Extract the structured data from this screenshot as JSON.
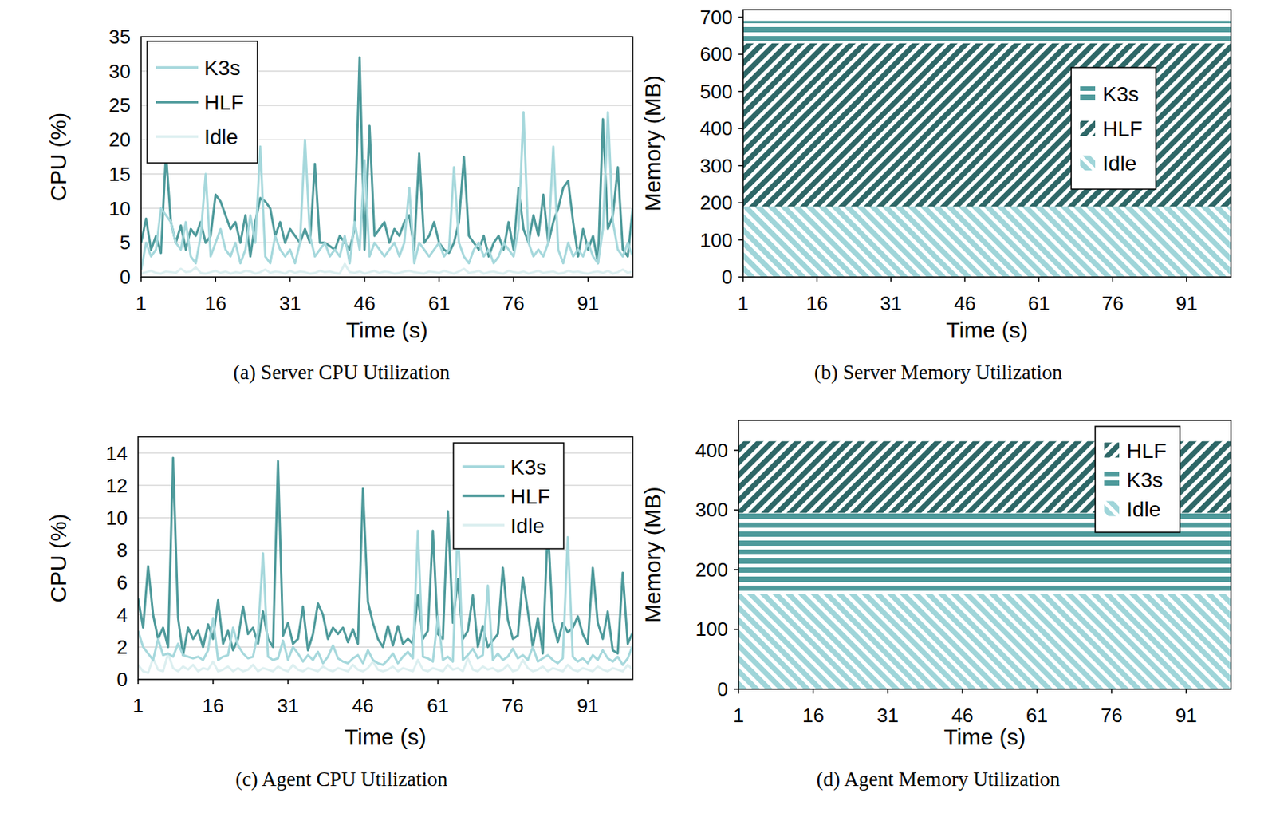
{
  "chart_data": [
    {
      "type": "line",
      "title": "(a) Server CPU Utilization",
      "x_label": "Time (s)",
      "y_label": "CPU (%)",
      "x": [
        1,
        2,
        3,
        4,
        5,
        6,
        7,
        8,
        9,
        10,
        11,
        12,
        13,
        14,
        15,
        16,
        17,
        18,
        19,
        20,
        21,
        22,
        23,
        24,
        25,
        26,
        27,
        28,
        29,
        30,
        31,
        32,
        33,
        34,
        35,
        36,
        37,
        38,
        39,
        40,
        41,
        42,
        43,
        44,
        45,
        46,
        47,
        48,
        49,
        50,
        51,
        52,
        53,
        54,
        55,
        56,
        57,
        58,
        59,
        60,
        61,
        62,
        63,
        64,
        65,
        66,
        67,
        68,
        69,
        70,
        71,
        72,
        73,
        74,
        75,
        76,
        77,
        78,
        79,
        80,
        81,
        82,
        83,
        84,
        85,
        86,
        87,
        88,
        89,
        90,
        91,
        92,
        93,
        94,
        95,
        96,
        97,
        98,
        99,
        100
      ],
      "xlim": [
        1,
        100
      ],
      "xticks": [
        1,
        16,
        31,
        46,
        61,
        76,
        91
      ],
      "ylim": [
        0,
        35
      ],
      "yticks": [
        0,
        5,
        10,
        15,
        20,
        25,
        30,
        35
      ],
      "grid": true,
      "legend": "upper left",
      "series": [
        {
          "name": "K3s",
          "color": "#a6d8dc",
          "values": [
            1,
            5,
            3,
            4,
            10,
            9,
            8,
            5,
            4,
            8,
            3,
            2,
            6,
            15,
            3,
            5,
            7,
            4,
            3,
            5,
            2,
            4,
            9,
            5,
            19,
            3,
            2,
            6,
            4,
            3,
            4,
            2,
            5,
            20,
            6,
            3,
            4,
            5,
            3,
            4,
            3,
            6,
            2,
            8,
            4,
            17,
            3,
            5,
            4,
            3,
            4,
            5,
            3,
            5,
            13,
            2,
            5,
            4,
            3,
            4,
            5,
            3,
            4,
            16,
            5,
            3,
            2,
            4,
            5,
            3,
            4,
            2,
            3,
            5,
            4,
            3,
            7,
            24,
            5,
            3,
            4,
            3,
            5,
            19,
            4,
            2,
            5,
            3,
            4,
            3,
            5,
            3,
            2,
            7,
            24,
            8,
            4,
            3,
            5,
            3
          ]
        },
        {
          "name": "HLF",
          "color": "#4e9a9b",
          "values": [
            5,
            8.5,
            4,
            6,
            3.5,
            18,
            8,
            5,
            7.5,
            4,
            7,
            6,
            8,
            5,
            6,
            12,
            11,
            9,
            7,
            8,
            5,
            9,
            3,
            8,
            11.5,
            11,
            10,
            6,
            8,
            5,
            7,
            6,
            5,
            7,
            5,
            16.5,
            5,
            5,
            4.5,
            4,
            6,
            5,
            4,
            7,
            32,
            4,
            22,
            6,
            7,
            8,
            5,
            7,
            6,
            8,
            9,
            4,
            18,
            5,
            6,
            8,
            5,
            4,
            3.5,
            5,
            8,
            17.5,
            6,
            5,
            4,
            6,
            3,
            5,
            6,
            4,
            8,
            4,
            13,
            7,
            5,
            9,
            6,
            12,
            5,
            8,
            10,
            13,
            14,
            8,
            3,
            7,
            4,
            6,
            2,
            23,
            7,
            9,
            16,
            4,
            3,
            10
          ]
        },
        {
          "name": "Idle",
          "color": "#dcefF0",
          "values": [
            0.5,
            0.7,
            0.9,
            0.6,
            0.5,
            0.8,
            0.7,
            0.6,
            1.2,
            0.7,
            0.8,
            1.4,
            0.6,
            0.5,
            0.7,
            0.9,
            0.6,
            0.8,
            0.5,
            0.7,
            0.6,
            0.9,
            0.8,
            0.5,
            0.7,
            1.1,
            0.6,
            0.8,
            0.7,
            0.5,
            0.9,
            0.6,
            0.8,
            0.7,
            0.5,
            0.6,
            0.9,
            0.7,
            0.8,
            0.6,
            0.5,
            1.9,
            0.7,
            0.6,
            0.8,
            0.5,
            0.7,
            0.9,
            0.6,
            0.8,
            0.7,
            0.5,
            0.6,
            0.8,
            0.9,
            0.7,
            0.6,
            0.5,
            0.8,
            0.7,
            0.6,
            0.9,
            0.7,
            0.5,
            0.8,
            1.2,
            0.6,
            0.7,
            0.9,
            0.5,
            0.7,
            0.8,
            0.6,
            0.5,
            0.9,
            0.7,
            0.6,
            0.8,
            0.5,
            0.7,
            0.9,
            0.6,
            0.7,
            0.8,
            0.5,
            0.6,
            0.9,
            0.7,
            0.8,
            0.6,
            0.5,
            0.7,
            0.8,
            0.6,
            0.9,
            0.5,
            0.7,
            1.1,
            0.6,
            0.8
          ]
        }
      ]
    },
    {
      "type": "area",
      "stacked": true,
      "title": "(b) Server Memory Utilization",
      "x_label": "Time (s)",
      "y_label": "Memory (MB)",
      "x": [
        1,
        100
      ],
      "xlim": [
        1,
        100
      ],
      "xticks": [
        1,
        16,
        31,
        46,
        61,
        76,
        91
      ],
      "ylim": [
        0,
        720
      ],
      "yticks": [
        0,
        100,
        200,
        300,
        400,
        500,
        600,
        700
      ],
      "grid": false,
      "legend": "center right",
      "series": [
        {
          "name": "K3s",
          "color": "#4e9a9b",
          "values": [
            60,
            60
          ]
        },
        {
          "name": "HLF",
          "color": "#2e6767",
          "values": [
            440,
            440
          ]
        },
        {
          "name": "Idle",
          "color": "#9fd5d9",
          "values": [
            190,
            190
          ]
        }
      ]
    },
    {
      "type": "line",
      "title": "(c) Agent CPU Utilization",
      "x_label": "Time (s)",
      "y_label": "CPU (%)",
      "x": [
        1,
        2,
        3,
        4,
        5,
        6,
        7,
        8,
        9,
        10,
        11,
        12,
        13,
        14,
        15,
        16,
        17,
        18,
        19,
        20,
        21,
        22,
        23,
        24,
        25,
        26,
        27,
        28,
        29,
        30,
        31,
        32,
        33,
        34,
        35,
        36,
        37,
        38,
        39,
        40,
        41,
        42,
        43,
        44,
        45,
        46,
        47,
        48,
        49,
        50,
        51,
        52,
        53,
        54,
        55,
        56,
        57,
        58,
        59,
        60,
        61,
        62,
        63,
        64,
        65,
        66,
        67,
        68,
        69,
        70,
        71,
        72,
        73,
        74,
        75,
        76,
        77,
        78,
        79,
        80,
        81,
        82,
        83,
        84,
        85,
        86,
        87,
        88,
        89,
        90,
        91,
        92,
        93,
        94,
        95,
        96,
        97,
        98,
        99,
        100
      ],
      "xlim": [
        1,
        100
      ],
      "xticks": [
        1,
        16,
        31,
        46,
        61,
        76,
        91
      ],
      "ylim": [
        0,
        15
      ],
      "yticks": [
        0,
        2,
        4,
        6,
        8,
        10,
        12,
        14
      ],
      "grid": true,
      "legend": "upper right",
      "series": [
        {
          "name": "K3s",
          "color": "#a6d8dc",
          "values": [
            3,
            2,
            1.6,
            1.2,
            2.5,
            1.5,
            1.6,
            1.4,
            2.2,
            1.5,
            1.4,
            1.3,
            1.4,
            1.2,
            1.8,
            3.8,
            1.2,
            1.4,
            1.5,
            3.2,
            2.1,
            1.6,
            1.3,
            1.4,
            2.9,
            7.8,
            1.4,
            1.2,
            1.3,
            2.4,
            1.2,
            2,
            1.6,
            1.1,
            1.5,
            1.2,
            1.7,
            1,
            1.4,
            2.1,
            1.3,
            1.1,
            1,
            1.3,
            1.5,
            1,
            1.8,
            1.2,
            1,
            0.9,
            1.2,
            1.6,
            1,
            1.4,
            1.7,
            1.3,
            9.2,
            1.4,
            1.3,
            1.1,
            3.9,
            1.2,
            1.4,
            1.1,
            9.8,
            1.2,
            1.5,
            1.9,
            1.3,
            1.5,
            5.8,
            1.2,
            1.6,
            1.2,
            1.4,
            1.9,
            1.3,
            1.5,
            1.2,
            2,
            1.1,
            1.3,
            1.5,
            1.2,
            1,
            1.3,
            8.8,
            1.4,
            1.1,
            1.3,
            1,
            1.5,
            1.2,
            1.8,
            1.3,
            1.1,
            1.4,
            0.9,
            1.3,
            2.1
          ]
        },
        {
          "name": "HLF",
          "color": "#4e9a9b",
          "values": [
            5,
            3.2,
            7,
            4,
            2.5,
            3.2,
            2,
            13.7,
            3.8,
            1.5,
            3.2,
            2.5,
            3,
            2,
            3.4,
            2.5,
            4.9,
            2.2,
            3,
            1.8,
            2.5,
            4.5,
            2.8,
            3.2,
            2.2,
            4.2,
            2.5,
            2,
            13.5,
            2.7,
            3.5,
            2.2,
            2.5,
            4.5,
            1.8,
            2.8,
            4.7,
            4,
            2.5,
            3.2,
            2.8,
            3.2,
            2.3,
            3.1,
            2.2,
            11.8,
            4.8,
            3.5,
            2.5,
            2,
            3.3,
            2.1,
            3.3,
            2.2,
            2.5,
            2.2,
            5.2,
            2.5,
            3,
            9.2,
            2.8,
            2.5,
            10.4,
            3.5,
            6.2,
            2.5,
            3,
            5.2,
            2,
            3.3,
            2,
            2.4,
            2.8,
            6.9,
            3.7,
            2.5,
            2.7,
            6.3,
            4.2,
            2,
            3.8,
            1.6,
            9.5,
            3.6,
            2.3,
            3.5,
            2.9,
            3.2,
            3.9,
            2.8,
            2.2,
            6.9,
            3.5,
            2.5,
            4.2,
            1.8,
            1.6,
            6.6,
            2.2,
            2.9
          ]
        },
        {
          "name": "Idle",
          "color": "#dcefF0",
          "values": [
            0.9,
            0.5,
            0.4,
            1.3,
            0.6,
            0.5,
            1.6,
            0.7,
            0.5,
            0.8,
            0.6,
            0.9,
            0.5,
            0.7,
            0.6,
            1.1,
            0.5,
            0.6,
            0.8,
            0.5,
            0.7,
            0.5,
            0.6,
            0.9,
            0.5,
            0.7,
            0.6,
            0.5,
            0.8,
            0.6,
            0.5,
            0.9,
            0.6,
            0.5,
            0.7,
            0.6,
            0.5,
            0.8,
            0.6,
            0.5,
            0.7,
            0.6,
            0.5,
            0.9,
            0.6,
            0.5,
            0.7,
            1.1,
            0.6,
            0.5,
            0.6,
            0.8,
            0.5,
            0.7,
            0.6,
            0.5,
            1.2,
            0.6,
            0.5,
            0.7,
            0.6,
            0.5,
            0.9,
            0.6,
            0.7,
            0.5,
            1.3,
            0.6,
            0.5,
            0.8,
            0.6,
            0.7,
            0.5,
            0.6,
            0.9,
            0.5,
            0.6,
            1.2,
            0.7,
            0.5,
            0.6,
            0.8,
            0.5,
            0.7,
            0.6,
            0.5,
            0.9,
            0.6,
            0.5,
            0.7,
            0.6,
            0.5,
            0.8,
            0.6,
            0.5,
            0.7,
            0.6,
            0.5,
            0.9,
            0.6
          ]
        }
      ]
    },
    {
      "type": "area",
      "stacked": true,
      "title": "(d) Agent Memory Utilization",
      "x_label": "Time (s)",
      "y_label": "Memory (MB)",
      "x": [
        1,
        100
      ],
      "xlim": [
        1,
        100
      ],
      "xticks": [
        1,
        16,
        31,
        46,
        61,
        76,
        91
      ],
      "ylim": [
        0,
        450
      ],
      "yticks": [
        0,
        100,
        200,
        300,
        400
      ],
      "grid": false,
      "legend": "upper right",
      "series": [
        {
          "name": "HLF",
          "color": "#2e6767",
          "values": [
            120,
            120
          ]
        },
        {
          "name": "K3s",
          "color": "#4e9a9b",
          "values": [
            135,
            135
          ]
        },
        {
          "name": "Idle",
          "color": "#9fd5d9",
          "values": [
            160,
            160
          ]
        }
      ]
    }
  ]
}
